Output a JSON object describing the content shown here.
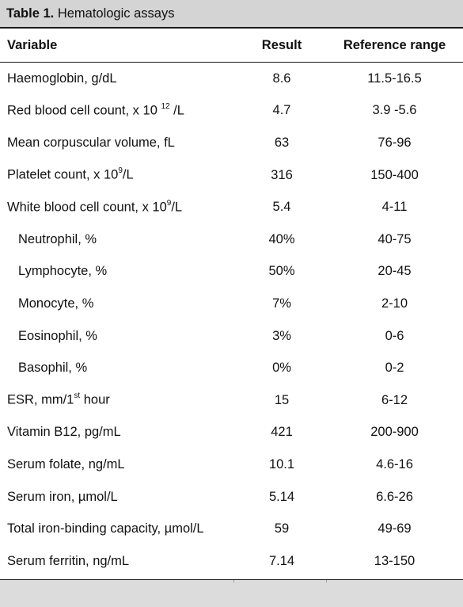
{
  "caption": {
    "lead": "Table 1.",
    "title": "Hematologic assays"
  },
  "columns": [
    "Variable",
    "Result",
    "Reference range"
  ],
  "rows": [
    {
      "pre": "Haemoglobin, g/dL",
      "sup": "",
      "post": "",
      "result": "8.6",
      "range": "11.5-16.5",
      "sub": false
    },
    {
      "pre": "Red blood cell count, x 10 ",
      "sup": "12",
      "post": " /L",
      "result": "4.7",
      "range": "3.9 -5.6",
      "sub": false
    },
    {
      "pre": "Mean corpuscular volume, fL",
      "sup": "",
      "post": "",
      "result": "63",
      "range": "76-96",
      "sub": false
    },
    {
      "pre": "Platelet count, x 10",
      "sup": "9",
      "post": "/L",
      "result": "316",
      "range": "150-400",
      "sub": false
    },
    {
      "pre": "White blood cell count, x 10",
      "sup": "9",
      "post": "/L",
      "result": "5.4",
      "range": "4-11",
      "sub": false
    },
    {
      "pre": "Neutrophil, %",
      "sup": "",
      "post": "",
      "result": "40%",
      "range": "40-75",
      "sub": true
    },
    {
      "pre": "Lymphocyte, %",
      "sup": "",
      "post": "",
      "result": "50%",
      "range": "20-45",
      "sub": true
    },
    {
      "pre": "Monocyte, %",
      "sup": "",
      "post": "",
      "result": "7%",
      "range": "2-10",
      "sub": true
    },
    {
      "pre": "Eosinophil, %",
      "sup": "",
      "post": "",
      "result": "3%",
      "range": "0-6",
      "sub": true
    },
    {
      "pre": "Basophil, %",
      "sup": "",
      "post": "",
      "result": "0%",
      "range": "0-2",
      "sub": true
    },
    {
      "pre": "ESR, mm/1",
      "sup": "st",
      "post": " hour",
      "result": "15",
      "range": "6-12",
      "sub": false
    },
    {
      "pre": "Vitamin B12, pg/mL",
      "sup": "",
      "post": "",
      "result": "421",
      "range": "200-900",
      "sub": false
    },
    {
      "pre": "Serum folate, ng/mL",
      "sup": "",
      "post": "",
      "result": "10.1",
      "range": "4.6-16",
      "sub": false
    },
    {
      "pre": "Serum iron, µmol/L",
      "sup": "",
      "post": "",
      "result": "5.14",
      "range": "6.6-26",
      "sub": false
    },
    {
      "pre": "Total iron-binding capacity, µmol/L",
      "sup": "",
      "post": "",
      "result": "59",
      "range": "49-69",
      "sub": false
    },
    {
      "pre": "Serum ferritin, ng/mL",
      "sup": "",
      "post": "",
      "result": "7.14",
      "range": "13-150",
      "sub": false
    }
  ]
}
